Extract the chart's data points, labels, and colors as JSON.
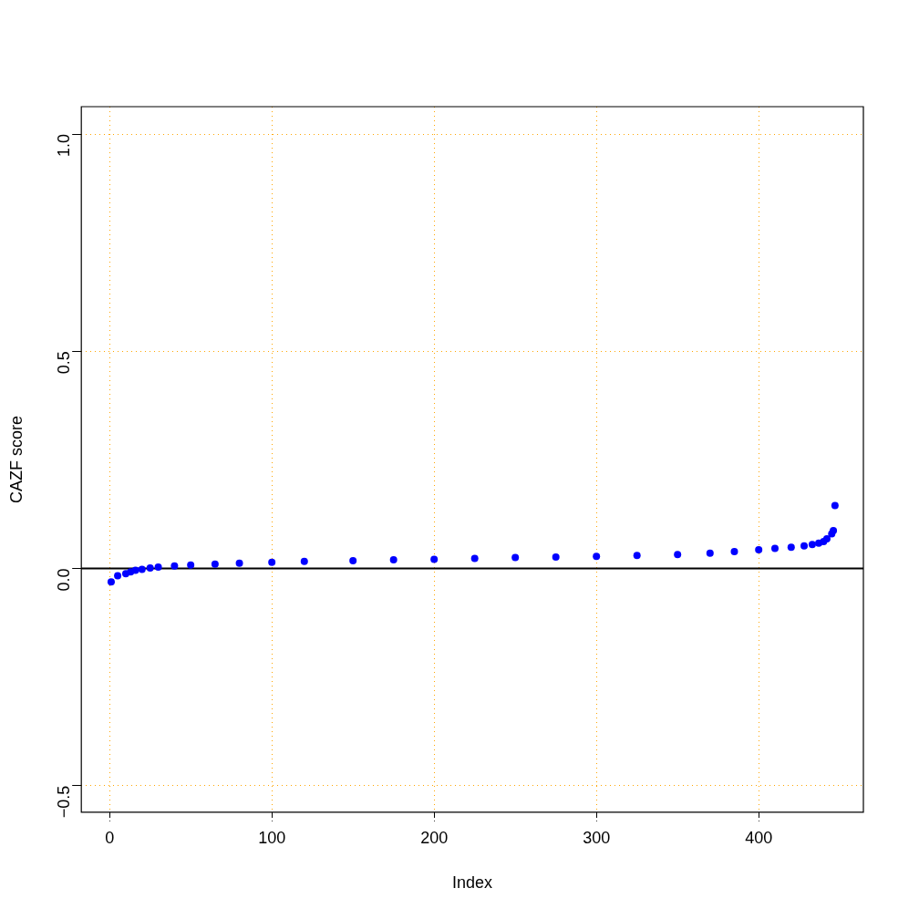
{
  "chart_data": {
    "type": "scatter",
    "xlabel": "Index",
    "ylabel": "CAZF score",
    "x": [
      1,
      5,
      10,
      13,
      16,
      20,
      25,
      30,
      40,
      50,
      65,
      80,
      100,
      120,
      150,
      175,
      200,
      225,
      250,
      275,
      300,
      325,
      350,
      370,
      385,
      400,
      410,
      420,
      428,
      433,
      437,
      440,
      442,
      445,
      446,
      447
    ],
    "series": [
      {
        "color": "#0000ff",
        "values": [
          -0.031,
          -0.017,
          -0.012,
          -0.008,
          -0.004,
          -0.002,
          0.001,
          0.003,
          0.006,
          0.008,
          0.01,
          0.012,
          0.014,
          0.016,
          0.018,
          0.02,
          0.021,
          0.023,
          0.025,
          0.026,
          0.028,
          0.03,
          0.032,
          0.035,
          0.039,
          0.043,
          0.046,
          0.049,
          0.052,
          0.055,
          0.058,
          0.062,
          0.068,
          0.08,
          0.087,
          0.145
        ]
      }
    ],
    "xlim": [
      -17.4,
      464.5
    ],
    "ylim": [
      -0.561,
      1.063
    ],
    "xticks": [
      0,
      100,
      200,
      300,
      400
    ],
    "yticks": [
      {
        "value": -0.5,
        "label": "−0.5"
      },
      {
        "value": 0,
        "label": "0.0"
      },
      {
        "value": 0.5,
        "label": "0.5"
      },
      {
        "value": 1,
        "label": "1.0"
      }
    ],
    "grid": true,
    "marker": "circle",
    "legend": false,
    "ref_lines": [
      {
        "axis": "y",
        "value": 0,
        "color": "#000000",
        "line_style": "solid"
      }
    ]
  }
}
